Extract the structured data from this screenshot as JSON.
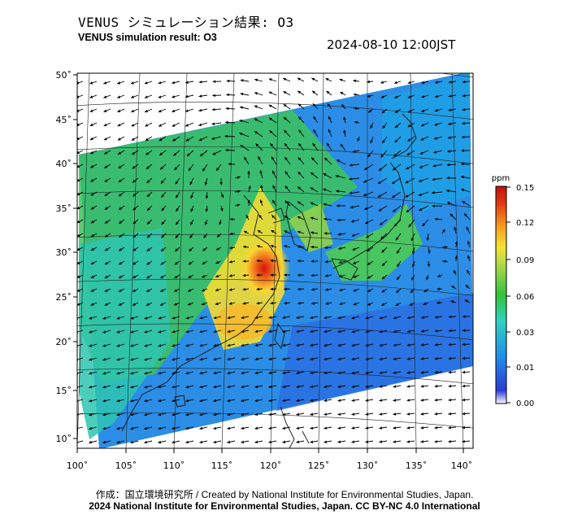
{
  "header": {
    "title_jp": "VENUS シミュレーション結果: O3",
    "title_en": "VENUS simulation result: O3",
    "timestamp": "2024-08-10 12:00JST"
  },
  "map": {
    "lat_labels": [
      "50˚",
      "45˚",
      "40˚",
      "35˚",
      "30˚",
      "25˚",
      "20˚",
      "15˚",
      "10˚"
    ],
    "lon_labels": [
      "100˚",
      "105˚",
      "110˚",
      "115˚",
      "120˚",
      "125˚",
      "130˚",
      "135˚",
      "140˚"
    ]
  },
  "colorbar": {
    "unit": "ppm",
    "labels": [
      "0.15",
      "0.12",
      "0.09",
      "0.06",
      "0.03",
      "0.01",
      "0.00"
    ],
    "colors": [
      "#ffffff",
      "#2b3bd6",
      "#1f90e8",
      "#2fd2c0",
      "#33c23a",
      "#9fd64a",
      "#f5e234",
      "#f39a1c",
      "#e23a12",
      "#c0100a"
    ]
  },
  "footer": {
    "credit_line1": "作成：国立環境研究所 / Created by National Institute for Environmental Studies, Japan.",
    "credit_line2": "2024 National Institute for Environmental Studies, Japan. CC BY-NC 4.0 International"
  }
}
